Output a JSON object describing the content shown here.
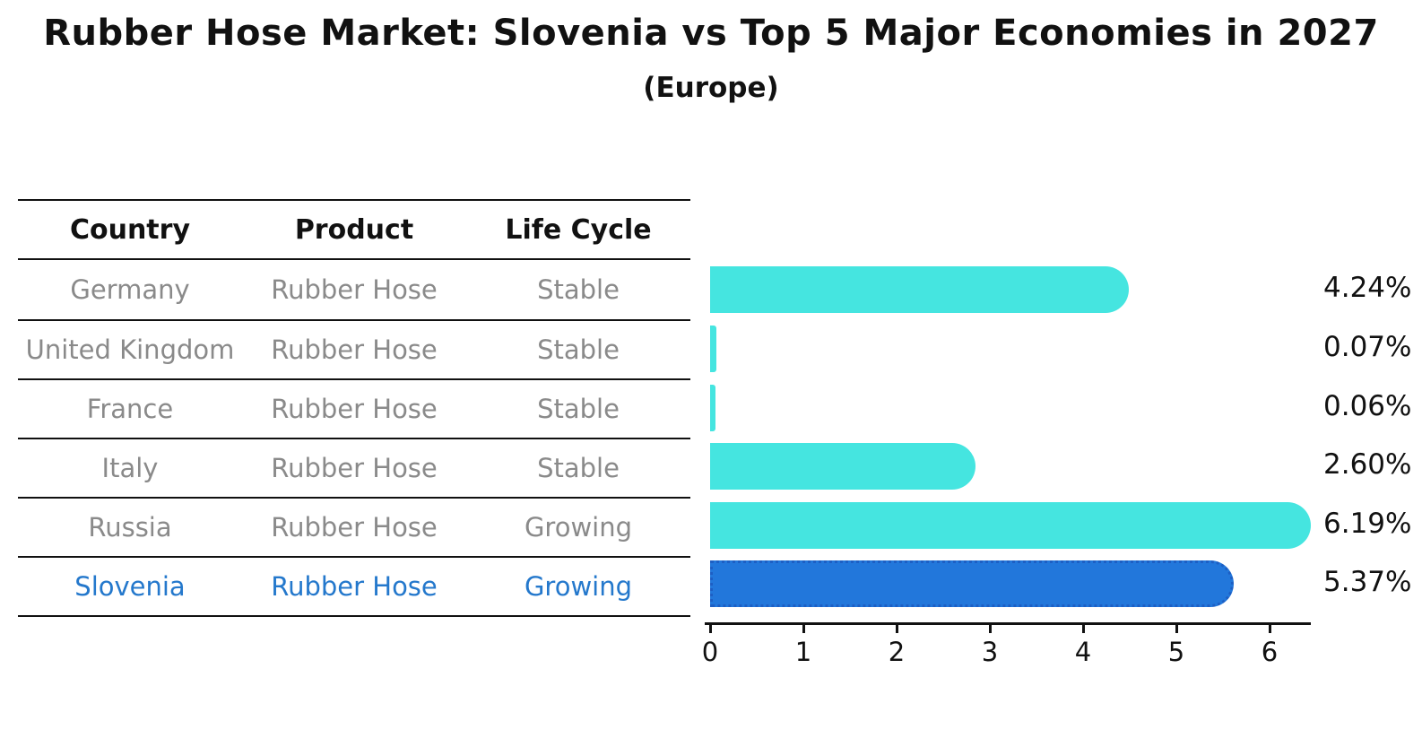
{
  "title": "Rubber Hose Market: Slovenia vs Top 5 Major Economies in 2027",
  "subtitle": "(Europe)",
  "table": {
    "headers": [
      "Country",
      "Product",
      "Life Cycle"
    ],
    "rows": [
      {
        "country": "Germany",
        "product": "Rubber Hose",
        "life_cycle": "Stable",
        "highlighted": false
      },
      {
        "country": "United Kingdom",
        "product": "Rubber Hose",
        "life_cycle": "Stable",
        "highlighted": false
      },
      {
        "country": "France",
        "product": "Rubber Hose",
        "life_cycle": "Stable",
        "highlighted": false
      },
      {
        "country": "Italy",
        "product": "Rubber Hose",
        "life_cycle": "Stable",
        "highlighted": false
      },
      {
        "country": "Russia",
        "product": "Rubber Hose",
        "life_cycle": "Growing",
        "highlighted": false
      },
      {
        "country": "Slovenia",
        "product": "Rubber Hose",
        "life_cycle": "Growing",
        "highlighted": true
      }
    ]
  },
  "chart_data": {
    "type": "bar",
    "orientation": "horizontal",
    "title": "Rubber Hose Market: Slovenia vs Top 5 Major Economies in 2027 (Europe)",
    "categories": [
      "Germany",
      "United Kingdom",
      "France",
      "Italy",
      "Russia",
      "Slovenia"
    ],
    "values": [
      4.24,
      0.07,
      0.06,
      2.6,
      6.19,
      5.37
    ],
    "value_labels": [
      "4.24%",
      "0.07%",
      "0.06%",
      "2.60%",
      "6.19%",
      "5.37%"
    ],
    "x_ticks": [
      "0",
      "1",
      "2",
      "3",
      "4",
      "5",
      "6"
    ],
    "xlim": [
      0,
      6.5
    ],
    "grid": false,
    "legend": false,
    "highlight_index": 5
  },
  "colors": {
    "bar": "#45E5E0",
    "highlight_bar": "#2277DB",
    "highlight_bar_border": "#1d5fc4",
    "highlight_text": "#2478CC",
    "row_text": "#8a8a8a",
    "text": "#111111",
    "background": "#ffffff"
  }
}
